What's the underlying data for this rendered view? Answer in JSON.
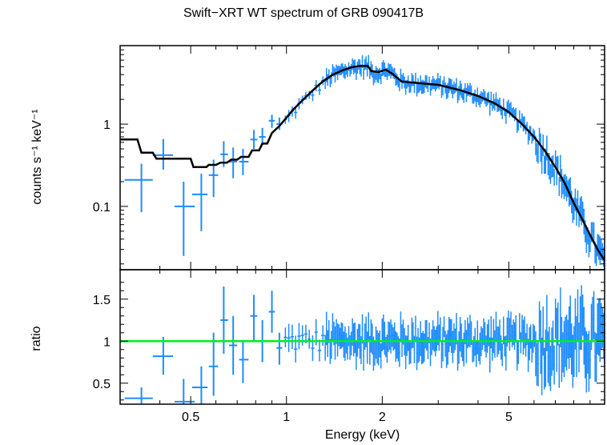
{
  "chart_data": [
    {
      "type": "scatter",
      "title": "Swift−XRT WT spectrum of GRB 090417B",
      "xlabel": "",
      "ylabel": "counts s⁻¹ keV⁻¹",
      "x_scale": "log",
      "y_scale": "log",
      "xlim": [
        0.3,
        10
      ],
      "ylim": [
        0.017,
        9
      ],
      "y_ticks": [
        {
          "value": 0.1,
          "label": "0.1"
        },
        {
          "value": 1,
          "label": "1"
        }
      ],
      "series": [
        {
          "kind": "data_points_with_errors",
          "color": "#1e8cff",
          "points": [
            {
              "x": 0.35,
              "xlo": 0.31,
              "xhi": 0.38,
              "y": 0.21,
              "ylo": 0.085,
              "yhi": 0.33
            },
            {
              "x": 0.41,
              "xlo": 0.38,
              "xhi": 0.44,
              "y": 0.42,
              "ylo": 0.28,
              "yhi": 0.66
            },
            {
              "x": 0.475,
              "xlo": 0.445,
              "xhi": 0.515,
              "y": 0.1,
              "ylo": 0.025,
              "yhi": 0.2
            },
            {
              "x": 0.54,
              "xlo": 0.505,
              "xhi": 0.565,
              "y": 0.14,
              "ylo": 0.05,
              "yhi": 0.25
            },
            {
              "x": 0.59,
              "xlo": 0.57,
              "xhi": 0.61,
              "y": 0.24,
              "ylo": 0.13,
              "yhi": 0.37
            },
            {
              "x": 0.635,
              "xlo": 0.62,
              "xhi": 0.655,
              "y": 0.43,
              "ylo": 0.3,
              "yhi": 0.62
            },
            {
              "x": 0.68,
              "xlo": 0.66,
              "xhi": 0.7,
              "y": 0.35,
              "ylo": 0.22,
              "yhi": 0.52
            },
            {
              "x": 0.73,
              "xlo": 0.71,
              "xhi": 0.76,
              "y": 0.35,
              "ylo": 0.24,
              "yhi": 0.5
            },
            {
              "x": 0.79,
              "xlo": 0.77,
              "xhi": 0.81,
              "y": 0.65,
              "ylo": 0.5,
              "yhi": 0.85
            },
            {
              "x": 0.84,
              "xlo": 0.82,
              "xhi": 0.86,
              "y": 0.7,
              "ylo": 0.55,
              "yhi": 0.9
            },
            {
              "x": 0.9,
              "xlo": 0.88,
              "xhi": 0.92,
              "y": 1.1,
              "ylo": 0.9,
              "yhi": 1.3
            },
            {
              "x": 0.95,
              "xlo": 0.93,
              "xhi": 0.97,
              "y": 1.0,
              "ylo": 0.85,
              "yhi": 1.2
            }
          ],
          "dense_from_keV": 0.98,
          "dense_note": "dense binned points above ~1 keV following the model with scatter"
        },
        {
          "kind": "model",
          "color": "#000000",
          "points": [
            [
              0.3,
              0.65
            ],
            [
              0.34,
              0.65
            ],
            [
              0.35,
              0.45
            ],
            [
              0.38,
              0.45
            ],
            [
              0.39,
              0.38
            ],
            [
              0.44,
              0.38
            ],
            [
              0.45,
              0.38
            ],
            [
              0.5,
              0.38
            ],
            [
              0.51,
              0.3
            ],
            [
              0.56,
              0.3
            ],
            [
              0.57,
              0.32
            ],
            [
              0.6,
              0.32
            ],
            [
              0.62,
              0.34
            ],
            [
              0.65,
              0.34
            ],
            [
              0.67,
              0.37
            ],
            [
              0.7,
              0.37
            ],
            [
              0.72,
              0.4
            ],
            [
              0.76,
              0.4
            ],
            [
              0.78,
              0.48
            ],
            [
              0.82,
              0.48
            ],
            [
              0.84,
              0.58
            ],
            [
              0.87,
              0.58
            ],
            [
              0.9,
              0.78
            ],
            [
              0.95,
              0.95
            ],
            [
              1.0,
              1.2
            ],
            [
              1.05,
              1.5
            ],
            [
              1.1,
              1.8
            ],
            [
              1.2,
              2.5
            ],
            [
              1.3,
              3.3
            ],
            [
              1.4,
              4.0
            ],
            [
              1.5,
              4.5
            ],
            [
              1.6,
              4.9
            ],
            [
              1.7,
              5.1
            ],
            [
              1.8,
              5.1
            ],
            [
              1.85,
              4.4
            ],
            [
              1.95,
              4.3
            ],
            [
              2.05,
              4.6
            ],
            [
              2.15,
              4.1
            ],
            [
              2.3,
              3.3
            ],
            [
              2.5,
              3.2
            ],
            [
              3.0,
              3.0
            ],
            [
              3.5,
              2.6
            ],
            [
              4.0,
              2.2
            ],
            [
              4.5,
              1.8
            ],
            [
              5.0,
              1.4
            ],
            [
              5.5,
              1.0
            ],
            [
              6.0,
              0.7
            ],
            [
              6.5,
              0.47
            ],
            [
              7.0,
              0.3
            ],
            [
              7.5,
              0.19
            ],
            [
              8.0,
              0.11
            ],
            [
              8.5,
              0.07
            ],
            [
              9.0,
              0.045
            ],
            [
              9.5,
              0.03
            ],
            [
              10.0,
              0.022
            ]
          ]
        }
      ]
    },
    {
      "type": "scatter",
      "xlabel": "Energy (keV)",
      "ylabel": "ratio",
      "x_scale": "log",
      "y_scale": "linear",
      "xlim": [
        0.3,
        10
      ],
      "ylim": [
        0.25,
        1.85
      ],
      "x_ticks": [
        {
          "value": 0.5,
          "label": "0.5"
        },
        {
          "value": 1,
          "label": "1"
        },
        {
          "value": 2,
          "label": "2"
        },
        {
          "value": 5,
          "label": "5"
        }
      ],
      "y_ticks": [
        {
          "value": 0.5,
          "label": "0.5"
        },
        {
          "value": 1,
          "label": "1"
        },
        {
          "value": 1.5,
          "label": "1.5"
        }
      ],
      "reference_line": {
        "y": 1.0,
        "color": "#00ee22"
      },
      "series": [
        {
          "kind": "ratio_points_with_errors",
          "color": "#1e8cff",
          "points": [
            {
              "x": 0.35,
              "xlo": 0.31,
              "xhi": 0.38,
              "y": 0.32,
              "ylo": 0.25,
              "yhi": 0.45
            },
            {
              "x": 0.41,
              "xlo": 0.38,
              "xhi": 0.44,
              "y": 0.82,
              "ylo": 0.6,
              "yhi": 1.05
            },
            {
              "x": 0.475,
              "xlo": 0.445,
              "xhi": 0.515,
              "y": 0.28,
              "ylo": 0.25,
              "yhi": 0.55
            },
            {
              "x": 0.54,
              "xlo": 0.505,
              "xhi": 0.565,
              "y": 0.45,
              "ylo": 0.25,
              "yhi": 0.7
            },
            {
              "x": 0.59,
              "xlo": 0.57,
              "xhi": 0.61,
              "y": 0.7,
              "ylo": 0.35,
              "yhi": 1.1
            },
            {
              "x": 0.635,
              "xlo": 0.62,
              "xhi": 0.655,
              "y": 1.25,
              "ylo": 0.85,
              "yhi": 1.65
            },
            {
              "x": 0.68,
              "xlo": 0.66,
              "xhi": 0.7,
              "y": 0.95,
              "ylo": 0.6,
              "yhi": 1.3
            },
            {
              "x": 0.73,
              "xlo": 0.71,
              "xhi": 0.76,
              "y": 0.78,
              "ylo": 0.5,
              "yhi": 1.0
            },
            {
              "x": 0.79,
              "xlo": 0.77,
              "xhi": 0.81,
              "y": 1.3,
              "ylo": 1.0,
              "yhi": 1.55
            },
            {
              "x": 0.84,
              "xlo": 0.82,
              "xhi": 0.86,
              "y": 1.0,
              "ylo": 0.75,
              "yhi": 1.25
            },
            {
              "x": 0.9,
              "xlo": 0.88,
              "xhi": 0.92,
              "y": 1.35,
              "ylo": 1.1,
              "yhi": 1.6
            },
            {
              "x": 0.95,
              "xlo": 0.93,
              "xhi": 0.97,
              "y": 0.92,
              "ylo": 0.72,
              "yhi": 1.1
            }
          ],
          "dense_from_keV": 0.98,
          "dense_note": "dense binned ratio points scatter around 1 above ~1 keV"
        }
      ]
    }
  ]
}
